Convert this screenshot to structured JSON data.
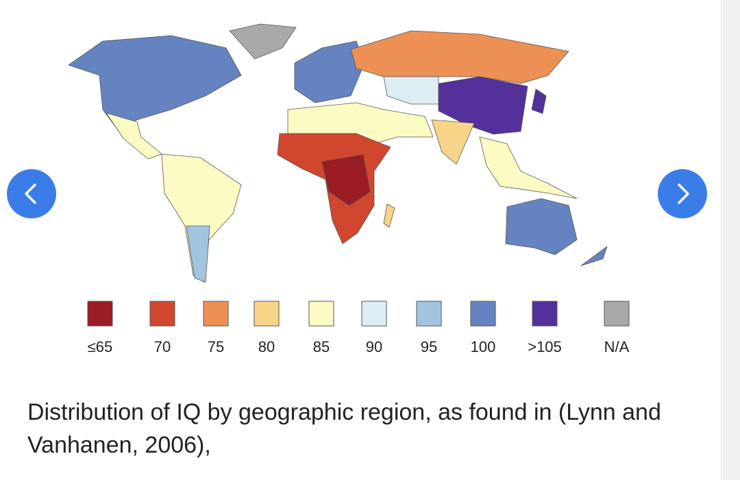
{
  "legend": {
    "items": [
      {
        "label": "≤65",
        "color": "#9b1c24"
      },
      {
        "label": "70",
        "color": "#d0462e"
      },
      {
        "label": "75",
        "color": "#ec9055"
      },
      {
        "label": "80",
        "color": "#f8d488"
      },
      {
        "label": "85",
        "color": "#fdfbc4"
      },
      {
        "label": "90",
        "color": "#dcedf3"
      },
      {
        "label": "95",
        "color": "#a3c4df"
      },
      {
        "label": "100",
        "color": "#6583c0"
      },
      {
        "label": ">105",
        "color": "#54309a"
      },
      {
        "label": "N/A",
        "color": "#a9a9a9"
      }
    ]
  },
  "caption": "Distribution of IQ by geographic region, as found in (Lynn and Vanhanen, 2006),"
}
